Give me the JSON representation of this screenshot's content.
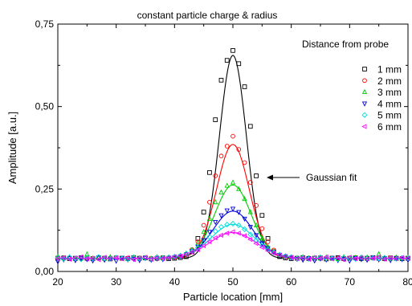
{
  "chart_data": {
    "type": "scatter",
    "title": "constant particle charge & radius",
    "xlabel": "Particle location [mm]",
    "ylabel": "Amplitude [a.u.]",
    "xlim": [
      20,
      80
    ],
    "ylim": [
      0,
      0.75
    ],
    "xticks": [
      "20",
      "30",
      "40",
      "50",
      "60",
      "70",
      "80"
    ],
    "yticks": [
      "0,00",
      "0,25",
      "0,50",
      "0,75"
    ],
    "grid": false,
    "legend_title": "Distance from probe",
    "legend_position": "top-right",
    "annotation": "Gaussian fit",
    "fit": {
      "type": "gaussian",
      "center": 50,
      "baseline": 0.04
    },
    "series": [
      {
        "name": "1 mm",
        "color": "#000000",
        "marker": "square",
        "fit_peak": 0.655,
        "fit_sigma": 2.3,
        "x": [
          20,
          21,
          22,
          23,
          24,
          25,
          26,
          27,
          28,
          29,
          30,
          31,
          32,
          33,
          34,
          35,
          36,
          37,
          38,
          39,
          40,
          41,
          42,
          43,
          44,
          45,
          46,
          47,
          48,
          49,
          50,
          51,
          52,
          53,
          54,
          55,
          56,
          57,
          58,
          59,
          60,
          61,
          62,
          63,
          64,
          65,
          66,
          67,
          68,
          69,
          70,
          71,
          72,
          73,
          74,
          75,
          76,
          77,
          78,
          79,
          80
        ],
        "y": [
          0.04,
          0.041,
          0.039,
          0.04,
          0.042,
          0.04,
          0.039,
          0.041,
          0.04,
          0.038,
          0.041,
          0.04,
          0.039,
          0.042,
          0.04,
          0.041,
          0.038,
          0.04,
          0.041,
          0.039,
          0.04,
          0.042,
          0.045,
          0.06,
          0.1,
          0.18,
          0.3,
          0.46,
          0.58,
          0.64,
          0.67,
          0.63,
          0.56,
          0.44,
          0.29,
          0.17,
          0.1,
          0.06,
          0.045,
          0.041,
          0.039,
          0.04,
          0.042,
          0.039,
          0.04,
          0.041,
          0.038,
          0.04,
          0.042,
          0.039,
          0.04,
          0.041,
          0.039,
          0.04,
          0.042,
          0.04,
          0.039,
          0.041,
          0.04,
          0.039,
          0.04
        ]
      },
      {
        "name": "2 mm",
        "color": "#ff0000",
        "marker": "circle",
        "fit_peak": 0.385,
        "fit_sigma": 2.8,
        "x": [
          20,
          21,
          22,
          23,
          24,
          25,
          26,
          27,
          28,
          29,
          30,
          31,
          32,
          33,
          34,
          35,
          36,
          37,
          38,
          39,
          40,
          41,
          42,
          43,
          44,
          45,
          46,
          47,
          48,
          49,
          50,
          51,
          52,
          53,
          54,
          55,
          56,
          57,
          58,
          59,
          60,
          61,
          62,
          63,
          64,
          65,
          66,
          67,
          68,
          69,
          70,
          71,
          72,
          73,
          74,
          75,
          76,
          77,
          78,
          79,
          80
        ],
        "y": [
          0.042,
          0.039,
          0.041,
          0.04,
          0.038,
          0.042,
          0.04,
          0.041,
          0.039,
          0.04,
          0.042,
          0.039,
          0.041,
          0.04,
          0.038,
          0.041,
          0.04,
          0.042,
          0.039,
          0.041,
          0.043,
          0.046,
          0.052,
          0.066,
          0.09,
          0.14,
          0.21,
          0.29,
          0.35,
          0.38,
          0.41,
          0.37,
          0.33,
          0.27,
          0.2,
          0.13,
          0.09,
          0.065,
          0.05,
          0.045,
          0.042,
          0.04,
          0.039,
          0.041,
          0.04,
          0.042,
          0.039,
          0.041,
          0.04,
          0.038,
          0.041,
          0.04,
          0.042,
          0.039,
          0.041,
          0.04,
          0.039,
          0.042,
          0.04,
          0.041,
          0.039
        ]
      },
      {
        "name": "3 mm",
        "color": "#00cc00",
        "marker": "triangle-up",
        "fit_peak": 0.262,
        "fit_sigma": 3.1,
        "x": [
          20,
          21,
          22,
          23,
          24,
          25,
          26,
          27,
          28,
          29,
          30,
          31,
          32,
          33,
          34,
          35,
          36,
          37,
          38,
          39,
          40,
          41,
          42,
          43,
          44,
          45,
          46,
          47,
          48,
          49,
          50,
          51,
          52,
          53,
          54,
          55,
          56,
          57,
          58,
          59,
          60,
          61,
          62,
          63,
          64,
          65,
          66,
          67,
          68,
          69,
          70,
          71,
          72,
          73,
          74,
          75,
          76,
          77,
          78,
          79,
          80
        ],
        "y": [
          0.045,
          0.04,
          0.043,
          0.038,
          0.041,
          0.052,
          0.04,
          0.042,
          0.039,
          0.044,
          0.04,
          0.041,
          0.038,
          0.043,
          0.04,
          0.042,
          0.039,
          0.044,
          0.041,
          0.043,
          0.045,
          0.048,
          0.055,
          0.066,
          0.085,
          0.12,
          0.16,
          0.21,
          0.24,
          0.26,
          0.27,
          0.25,
          0.22,
          0.18,
          0.14,
          0.1,
          0.075,
          0.06,
          0.05,
          0.046,
          0.043,
          0.041,
          0.044,
          0.04,
          0.042,
          0.039,
          0.043,
          0.041,
          0.038,
          0.044,
          0.04,
          0.042,
          0.039,
          0.043,
          0.04,
          0.053,
          0.041,
          0.039,
          0.043,
          0.04,
          0.042
        ]
      },
      {
        "name": "4 mm",
        "color": "#0000dd",
        "marker": "triangle-down",
        "fit_peak": 0.183,
        "fit_sigma": 3.4,
        "x": [
          20,
          21,
          22,
          23,
          24,
          25,
          26,
          27,
          28,
          29,
          30,
          31,
          32,
          33,
          34,
          35,
          36,
          37,
          38,
          39,
          40,
          41,
          42,
          43,
          44,
          45,
          46,
          47,
          48,
          49,
          50,
          51,
          52,
          53,
          54,
          55,
          56,
          57,
          58,
          59,
          60,
          61,
          62,
          63,
          64,
          65,
          66,
          67,
          68,
          69,
          70,
          71,
          72,
          73,
          74,
          75,
          76,
          77,
          78,
          79,
          80
        ],
        "y": [
          0.03,
          0.036,
          0.041,
          0.034,
          0.04,
          0.037,
          0.033,
          0.042,
          0.035,
          0.039,
          0.032,
          0.041,
          0.036,
          0.038,
          0.034,
          0.04,
          0.035,
          0.039,
          0.037,
          0.041,
          0.043,
          0.046,
          0.052,
          0.062,
          0.075,
          0.095,
          0.12,
          0.15,
          0.17,
          0.185,
          0.19,
          0.18,
          0.16,
          0.135,
          0.11,
          0.085,
          0.07,
          0.058,
          0.05,
          0.045,
          0.042,
          0.038,
          0.035,
          0.04,
          0.033,
          0.039,
          0.036,
          0.041,
          0.034,
          0.038,
          0.032,
          0.04,
          0.037,
          0.035,
          0.041,
          0.036,
          0.039,
          0.034,
          0.04,
          0.037,
          0.035
        ]
      },
      {
        "name": "5 mm",
        "color": "#00dddd",
        "marker": "diamond",
        "fit_peak": 0.143,
        "fit_sigma": 3.7,
        "x": [
          20,
          21,
          22,
          23,
          24,
          25,
          26,
          27,
          28,
          29,
          30,
          31,
          32,
          33,
          34,
          35,
          36,
          37,
          38,
          39,
          40,
          41,
          42,
          43,
          44,
          45,
          46,
          47,
          48,
          49,
          50,
          51,
          52,
          53,
          54,
          55,
          56,
          57,
          58,
          59,
          60,
          61,
          62,
          63,
          64,
          65,
          66,
          67,
          68,
          69,
          70,
          71,
          72,
          73,
          74,
          75,
          76,
          77,
          78,
          79,
          80
        ],
        "y": [
          0.041,
          0.038,
          0.043,
          0.04,
          0.037,
          0.042,
          0.039,
          0.044,
          0.04,
          0.038,
          0.042,
          0.04,
          0.037,
          0.043,
          0.039,
          0.041,
          0.038,
          0.042,
          0.04,
          0.043,
          0.045,
          0.048,
          0.054,
          0.062,
          0.072,
          0.088,
          0.105,
          0.122,
          0.135,
          0.142,
          0.145,
          0.14,
          0.128,
          0.112,
          0.095,
          0.08,
          0.067,
          0.058,
          0.051,
          0.047,
          0.044,
          0.04,
          0.042,
          0.038,
          0.041,
          0.043,
          0.039,
          0.04,
          0.037,
          0.042,
          0.04,
          0.038,
          0.043,
          0.04,
          0.041,
          0.039,
          0.042,
          0.04,
          0.038,
          0.041,
          0.04
        ]
      },
      {
        "name": "6 mm",
        "color": "#ff00ff",
        "marker": "triangle-left",
        "fit_peak": 0.118,
        "fit_sigma": 4.0,
        "x": [
          20,
          21,
          22,
          23,
          24,
          25,
          26,
          27,
          28,
          29,
          30,
          31,
          32,
          33,
          34,
          35,
          36,
          37,
          38,
          39,
          40,
          41,
          42,
          43,
          44,
          45,
          46,
          47,
          48,
          49,
          50,
          51,
          52,
          53,
          54,
          55,
          56,
          57,
          58,
          59,
          60,
          61,
          62,
          63,
          64,
          65,
          66,
          67,
          68,
          69,
          70,
          71,
          72,
          73,
          74,
          75,
          76,
          77,
          78,
          79,
          80
        ],
        "y": [
          0.039,
          0.042,
          0.037,
          0.041,
          0.044,
          0.038,
          0.04,
          0.036,
          0.043,
          0.039,
          0.041,
          0.038,
          0.042,
          0.036,
          0.04,
          0.043,
          0.037,
          0.041,
          0.039,
          0.042,
          0.045,
          0.047,
          0.052,
          0.058,
          0.066,
          0.078,
          0.09,
          0.102,
          0.11,
          0.116,
          0.12,
          0.116,
          0.108,
          0.097,
          0.085,
          0.073,
          0.063,
          0.055,
          0.05,
          0.046,
          0.043,
          0.039,
          0.041,
          0.037,
          0.042,
          0.04,
          0.044,
          0.038,
          0.041,
          0.036,
          0.043,
          0.039,
          0.042,
          0.038,
          0.04,
          0.044,
          0.037,
          0.041,
          0.039,
          0.042,
          0.04
        ]
      }
    ]
  }
}
